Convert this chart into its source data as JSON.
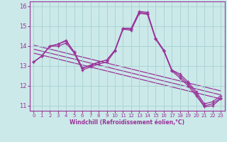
{
  "xlabel": "Windchill (Refroidissement éolien,°C)",
  "xlim": [
    -0.5,
    23.5
  ],
  "ylim": [
    10.75,
    16.25
  ],
  "yticks": [
    11,
    12,
    13,
    14,
    15,
    16
  ],
  "xticks": [
    0,
    1,
    2,
    3,
    4,
    5,
    6,
    7,
    8,
    9,
    10,
    11,
    12,
    13,
    14,
    15,
    16,
    17,
    18,
    19,
    20,
    21,
    22,
    23
  ],
  "bg_color": "#cce9e9",
  "line_color": "#993399",
  "grid_color": "#aad4d4",
  "series": [
    [
      13.2,
      13.5,
      14.0,
      14.1,
      14.3,
      13.7,
      12.9,
      13.0,
      13.2,
      13.3,
      13.8,
      14.9,
      14.9,
      15.75,
      15.7,
      14.4,
      13.8,
      12.8,
      12.6,
      12.2,
      11.7,
      11.1,
      11.2,
      11.5
    ],
    [
      13.2,
      13.5,
      14.0,
      14.1,
      14.25,
      13.7,
      12.9,
      13.05,
      13.2,
      13.3,
      13.8,
      14.9,
      14.85,
      15.7,
      15.65,
      14.4,
      13.8,
      12.8,
      12.5,
      12.1,
      11.6,
      11.0,
      11.1,
      11.4
    ],
    [
      13.2,
      13.5,
      14.0,
      14.0,
      14.15,
      13.65,
      12.8,
      12.95,
      13.1,
      13.2,
      13.75,
      14.85,
      14.8,
      15.65,
      15.6,
      14.35,
      13.75,
      12.75,
      12.4,
      12.0,
      11.5,
      10.95,
      11.0,
      11.35
    ]
  ],
  "trend_lines": [
    {
      "x0": 0,
      "y0": 13.85,
      "x1": 23,
      "y1": 11.55
    },
    {
      "x0": 0,
      "y0": 14.05,
      "x1": 23,
      "y1": 11.75
    },
    {
      "x0": 0,
      "y0": 13.65,
      "x1": 23,
      "y1": 11.35
    }
  ]
}
